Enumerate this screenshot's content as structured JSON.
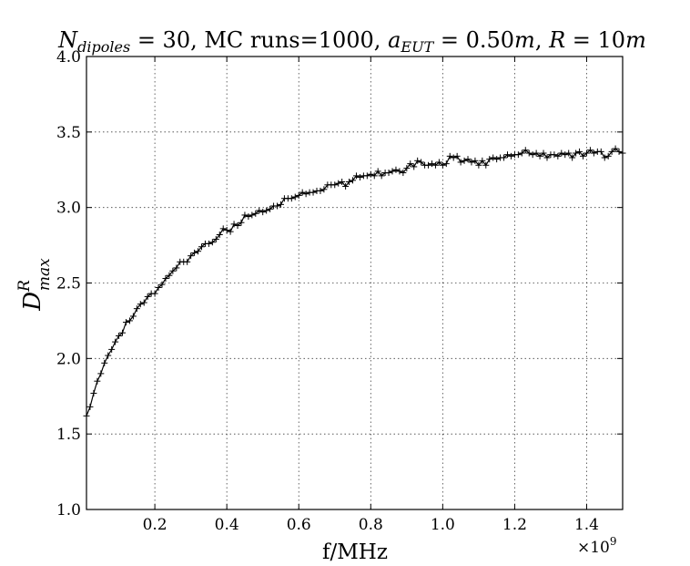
{
  "chart_data": {
    "type": "line",
    "title": {
      "n_symbol": "N",
      "n_subscript": "dipoles",
      "n_value_text": " = 30, MC runs=1000, ",
      "a_symbol": "a",
      "a_subscript": "EUT",
      "a_value_text": " = 0.50",
      "a_unit": "m",
      "r_sep": ", ",
      "r_symbol": "R",
      "r_value_text": " = 10",
      "r_unit": "m"
    },
    "xlabel": "f/MHz",
    "x_multiplier": {
      "base": "×10",
      "exponent": "9"
    },
    "ylabel": {
      "symbol": "D",
      "superscript": "R",
      "subscript": "max"
    },
    "xlim": [
      0.01,
      1.5
    ],
    "ylim": [
      1.0,
      4.0
    ],
    "x_ticks": [
      0.2,
      0.4,
      0.6,
      0.8,
      1.0,
      1.2,
      1.4
    ],
    "x_tick_labels": [
      "0.2",
      "0.4",
      "0.6",
      "0.8",
      "1.0",
      "1.2",
      "1.4"
    ],
    "y_ticks": [
      1.0,
      1.5,
      2.0,
      2.5,
      3.0,
      3.5,
      4.0
    ],
    "y_tick_labels": [
      "1.0",
      "1.5",
      "2.0",
      "2.5",
      "3.0",
      "3.5",
      "4.0"
    ],
    "grid": true,
    "marker": "+",
    "color": "#000000",
    "x_scale_note": "x values in units of 10^9",
    "series": [
      {
        "x": [
          0.01,
          0.02,
          0.03,
          0.04,
          0.05,
          0.06,
          0.07,
          0.08,
          0.09,
          0.1,
          0.11,
          0.12,
          0.13,
          0.14,
          0.15,
          0.16,
          0.17,
          0.18,
          0.19,
          0.2,
          0.21,
          0.22,
          0.23,
          0.24,
          0.25,
          0.26,
          0.27,
          0.28,
          0.29,
          0.3,
          0.31,
          0.32,
          0.33,
          0.34,
          0.35,
          0.36,
          0.37,
          0.38,
          0.39,
          0.4,
          0.41,
          0.42,
          0.43,
          0.44,
          0.45,
          0.46,
          0.47,
          0.48,
          0.49,
          0.5,
          0.51,
          0.52,
          0.53,
          0.54,
          0.55,
          0.56,
          0.57,
          0.58,
          0.59,
          0.6,
          0.61,
          0.62,
          0.63,
          0.64,
          0.65,
          0.66,
          0.67,
          0.68,
          0.69,
          0.7,
          0.71,
          0.72,
          0.73,
          0.74,
          0.75,
          0.76,
          0.77,
          0.78,
          0.79,
          0.8,
          0.81,
          0.82,
          0.83,
          0.84,
          0.85,
          0.86,
          0.87,
          0.88,
          0.89,
          0.9,
          0.91,
          0.92,
          0.93,
          0.94,
          0.95,
          0.96,
          0.97,
          0.98,
          0.99,
          1.0,
          1.01,
          1.02,
          1.03,
          1.04,
          1.05,
          1.06,
          1.07,
          1.08,
          1.09,
          1.1,
          1.11,
          1.12,
          1.13,
          1.14,
          1.15,
          1.16,
          1.17,
          1.18,
          1.19,
          1.2,
          1.21,
          1.22,
          1.23,
          1.24,
          1.25,
          1.26,
          1.27,
          1.28,
          1.29,
          1.3,
          1.31,
          1.32,
          1.33,
          1.34,
          1.35,
          1.36,
          1.37,
          1.38,
          1.39,
          1.4,
          1.41,
          1.42,
          1.43,
          1.44,
          1.45,
          1.46,
          1.47,
          1.48,
          1.49,
          1.5
        ],
        "y": [
          1.62,
          1.68,
          1.77,
          1.85,
          1.9,
          1.97,
          2.02,
          2.06,
          2.11,
          2.15,
          2.17,
          2.24,
          2.25,
          2.28,
          2.33,
          2.36,
          2.37,
          2.41,
          2.43,
          2.43,
          2.47,
          2.49,
          2.53,
          2.55,
          2.58,
          2.6,
          2.64,
          2.64,
          2.64,
          2.68,
          2.7,
          2.71,
          2.74,
          2.76,
          2.76,
          2.77,
          2.79,
          2.82,
          2.86,
          2.85,
          2.84,
          2.89,
          2.88,
          2.9,
          2.95,
          2.94,
          2.95,
          2.96,
          2.98,
          2.97,
          2.98,
          2.99,
          3.01,
          3.01,
          3.02,
          3.06,
          3.06,
          3.06,
          3.07,
          3.08,
          3.1,
          3.09,
          3.1,
          3.1,
          3.11,
          3.11,
          3.12,
          3.15,
          3.15,
          3.15,
          3.16,
          3.17,
          3.14,
          3.17,
          3.18,
          3.21,
          3.2,
          3.21,
          3.21,
          3.22,
          3.21,
          3.24,
          3.21,
          3.23,
          3.23,
          3.24,
          3.25,
          3.24,
          3.23,
          3.26,
          3.29,
          3.27,
          3.31,
          3.3,
          3.28,
          3.28,
          3.29,
          3.28,
          3.3,
          3.28,
          3.29,
          3.34,
          3.33,
          3.34,
          3.3,
          3.31,
          3.32,
          3.3,
          3.31,
          3.28,
          3.31,
          3.28,
          3.32,
          3.33,
          3.32,
          3.33,
          3.33,
          3.35,
          3.34,
          3.35,
          3.35,
          3.36,
          3.38,
          3.36,
          3.35,
          3.36,
          3.34,
          3.36,
          3.33,
          3.35,
          3.35,
          3.34,
          3.36,
          3.35,
          3.36,
          3.33,
          3.36,
          3.37,
          3.34,
          3.36,
          3.38,
          3.36,
          3.37,
          3.37,
          3.33,
          3.34,
          3.37,
          3.39,
          3.37,
          3.36
        ]
      }
    ]
  }
}
